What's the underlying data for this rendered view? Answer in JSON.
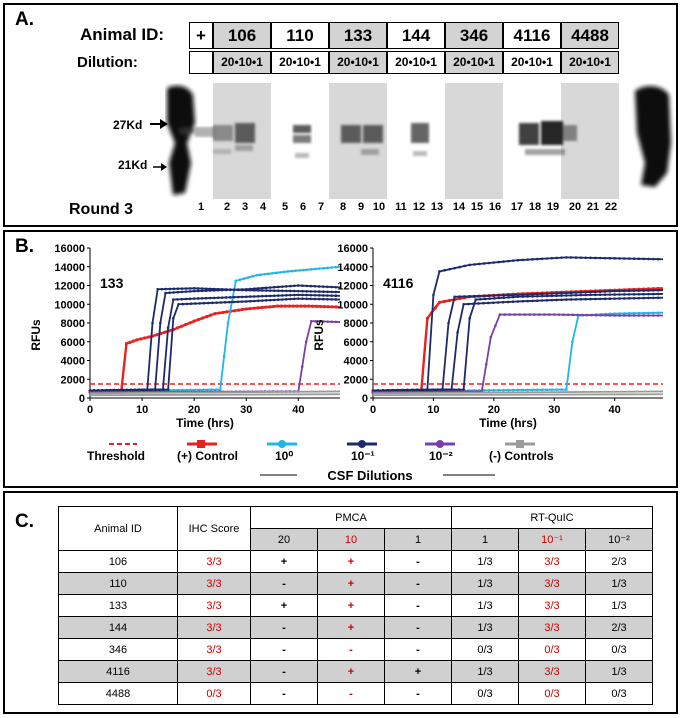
{
  "panel_a": {
    "label": "A.",
    "animal_id_label": "Animal ID:",
    "dilution_label": "Dilution:",
    "round_label": "Round 3",
    "positive_label": "+",
    "marker_27": "27Kd",
    "marker_21": "21Kd",
    "animals": [
      {
        "id": "106",
        "dilution": "20•10•1",
        "shade": true
      },
      {
        "id": "110",
        "dilution": "20•10•1",
        "shade": false
      },
      {
        "id": "133",
        "dilution": "20•10•1",
        "shade": true
      },
      {
        "id": "144",
        "dilution": "20•10•1",
        "shade": false
      },
      {
        "id": "346",
        "dilution": "20•10•1",
        "shade": true
      },
      {
        "id": "4116",
        "dilution": "20•10•1",
        "shade": false
      },
      {
        "id": "4488",
        "dilution": "20•10•1",
        "shade": true
      }
    ],
    "lanes": [
      "1",
      "2",
      "3",
      "4",
      "5",
      "6",
      "7",
      "8",
      "9",
      "10",
      "11",
      "12",
      "13",
      "14",
      "15",
      "16",
      "17",
      "18",
      "19",
      "20",
      "21",
      "22"
    ]
  },
  "panel_b": {
    "label": "B.",
    "chart_data": [
      {
        "type": "line",
        "title": "133",
        "xlabel": "Time (hrs)",
        "ylabel": "RFUs",
        "xlim": [
          0,
          48
        ],
        "ylim": [
          0,
          16000
        ],
        "xticks": [
          "0",
          "10",
          "20",
          "30",
          "40"
        ],
        "yticks": [
          "0",
          "2000",
          "4000",
          "6000",
          "8000",
          "10000",
          "12000",
          "14000",
          "16000"
        ],
        "threshold": 1500,
        "series": [
          {
            "group": "positive",
            "color": "#e8231e",
            "points": [
              [
                0,
                600
              ],
              [
                6,
                700
              ],
              [
                7,
                5800
              ],
              [
                9,
                6200
              ],
              [
                12,
                6600
              ],
              [
                16,
                7300
              ],
              [
                20,
                8200
              ],
              [
                24,
                9000
              ],
              [
                30,
                9500
              ],
              [
                36,
                9800
              ],
              [
                42,
                9800
              ],
              [
                48,
                9700
              ]
            ]
          },
          {
            "group": "d0",
            "color": "#1fb5e8",
            "points": [
              [
                0,
                700
              ],
              [
                25,
                900
              ],
              [
                26.5,
                8000
              ],
              [
                28,
                12500
              ],
              [
                32,
                13100
              ],
              [
                38,
                13500
              ],
              [
                44,
                13800
              ],
              [
                48,
                14000
              ]
            ]
          },
          {
            "group": "d1",
            "color": "#1c2a6b",
            "points": [
              [
                0,
                800
              ],
              [
                11,
                900
              ],
              [
                12,
                8000
              ],
              [
                13,
                11600
              ],
              [
                20,
                11700
              ],
              [
                30,
                11500
              ],
              [
                40,
                11400
              ],
              [
                48,
                11300
              ]
            ]
          },
          {
            "group": "d1",
            "color": "#1c2a6b",
            "points": [
              [
                0,
                800
              ],
              [
                12.5,
                900
              ],
              [
                13.5,
                8000
              ],
              [
                14.5,
                11200
              ],
              [
                20,
                11400
              ],
              [
                30,
                11600
              ],
              [
                40,
                12000
              ],
              [
                48,
                11800
              ]
            ]
          },
          {
            "group": "d1",
            "color": "#1c2a6b",
            "points": [
              [
                0,
                800
              ],
              [
                14,
                900
              ],
              [
                15,
                7500
              ],
              [
                16,
                10500
              ],
              [
                20,
                10600
              ],
              [
                30,
                10800
              ],
              [
                40,
                11000
              ],
              [
                48,
                10900
              ]
            ]
          },
          {
            "group": "d1",
            "color": "#1c2a6b",
            "points": [
              [
                0,
                800
              ],
              [
                15,
                900
              ],
              [
                16,
                8500
              ],
              [
                17,
                10000
              ],
              [
                30,
                10300
              ],
              [
                40,
                10600
              ],
              [
                48,
                10500
              ]
            ]
          },
          {
            "group": "d2",
            "color": "#7b3fa8",
            "points": [
              [
                0,
                600
              ],
              [
                40,
                700
              ],
              [
                41.5,
                6000
              ],
              [
                42.5,
                8200
              ],
              [
                48,
                8100
              ]
            ]
          },
          {
            "group": "neg",
            "color": "#9a9a9a",
            "points": [
              [
                0,
                300
              ],
              [
                48,
                400
              ]
            ]
          },
          {
            "group": "neg",
            "color": "#9a9a9a",
            "points": [
              [
                0,
                500
              ],
              [
                48,
                700
              ]
            ]
          }
        ]
      },
      {
        "type": "line",
        "title": "4116",
        "xlabel": "Time (hrs)",
        "ylabel": "RFUs",
        "xlim": [
          0,
          48
        ],
        "ylim": [
          0,
          16000
        ],
        "xticks": [
          "0",
          "10",
          "20",
          "30",
          "40"
        ],
        "yticks": [
          "0",
          "2000",
          "4000",
          "6000",
          "8000",
          "10000",
          "12000",
          "14000",
          "16000"
        ],
        "threshold": 1500,
        "series": [
          {
            "group": "positive",
            "color": "#e8231e",
            "points": [
              [
                0,
                600
              ],
              [
                8,
                800
              ],
              [
                9,
                8500
              ],
              [
                11,
                10200
              ],
              [
                16,
                10800
              ],
              [
                24,
                11100
              ],
              [
                32,
                11300
              ],
              [
                40,
                11500
              ],
              [
                48,
                11700
              ]
            ]
          },
          {
            "group": "d0",
            "color": "#1fb5e8",
            "points": [
              [
                0,
                700
              ],
              [
                32,
                900
              ],
              [
                33,
                6000
              ],
              [
                34,
                8800
              ],
              [
                40,
                9000
              ],
              [
                48,
                9100
              ]
            ]
          },
          {
            "group": "d1",
            "color": "#1c2a6b",
            "points": [
              [
                0,
                800
              ],
              [
                9,
                900
              ],
              [
                10,
                11000
              ],
              [
                11,
                13500
              ],
              [
                16,
                14200
              ],
              [
                24,
                14700
              ],
              [
                32,
                15000
              ],
              [
                40,
                14900
              ],
              [
                48,
                14800
              ]
            ]
          },
          {
            "group": "d1",
            "color": "#1c2a6b",
            "points": [
              [
                0,
                800
              ],
              [
                11.5,
                900
              ],
              [
                12.5,
                8000
              ],
              [
                13.5,
                10800
              ],
              [
                24,
                11000
              ],
              [
                32,
                11200
              ],
              [
                40,
                11400
              ],
              [
                48,
                11500
              ]
            ]
          },
          {
            "group": "d1",
            "color": "#1c2a6b",
            "points": [
              [
                0,
                800
              ],
              [
                13,
                900
              ],
              [
                14,
                7000
              ],
              [
                15,
                10000
              ],
              [
                24,
                10300
              ],
              [
                32,
                10500
              ],
              [
                40,
                10600
              ],
              [
                48,
                10700
              ]
            ]
          },
          {
            "group": "d1",
            "color": "#1c2a6b",
            "points": [
              [
                0,
                800
              ],
              [
                15,
                900
              ],
              [
                16,
                8500
              ],
              [
                17,
                10500
              ],
              [
                24,
                10800
              ],
              [
                36,
                11000
              ],
              [
                48,
                11100
              ]
            ]
          },
          {
            "group": "d2",
            "color": "#7b3fa8",
            "points": [
              [
                0,
                600
              ],
              [
                18,
                700
              ],
              [
                19.5,
                6500
              ],
              [
                21,
                8900
              ],
              [
                30,
                8900
              ],
              [
                40,
                8800
              ],
              [
                48,
                8800
              ]
            ]
          },
          {
            "group": "neg",
            "color": "#9a9a9a",
            "points": [
              [
                0,
                300
              ],
              [
                48,
                400
              ]
            ]
          },
          {
            "group": "neg",
            "color": "#9a9a9a",
            "points": [
              [
                0,
                500
              ],
              [
                48,
                700
              ]
            ]
          }
        ]
      }
    ],
    "legend": {
      "threshold": "Threshold",
      "positive": "(+) Control",
      "d0": "10⁰",
      "d1": "10⁻¹",
      "d2": "10⁻²",
      "negative": "(-) Controls",
      "csf": "CSF Dilutions"
    },
    "colors": {
      "threshold": "#e8231e",
      "positive": "#e8231e",
      "d0": "#1fb5e8",
      "d1": "#1c2a6b",
      "d2": "#7b3fa8",
      "negative": "#9a9a9a"
    }
  },
  "panel_c": {
    "label": "C.",
    "headers": {
      "animal": "Animal ID",
      "ihc": "IHC Score",
      "pmca": "PMCA",
      "rtquic": "RT-QuIC",
      "pmca_sub": [
        "20",
        "10",
        "1"
      ],
      "rt_sub": [
        "1",
        "10⁻¹",
        "10⁻²"
      ]
    },
    "rows": [
      {
        "id": "106",
        "ihc": "3/3",
        "p20": "+",
        "p10": "+",
        "p1": "-",
        "r1": "1/3",
        "r10": "3/3",
        "r100": "2/3"
      },
      {
        "id": "110",
        "ihc": "3/3",
        "p20": "-",
        "p10": "+",
        "p1": "-",
        "r1": "1/3",
        "r10": "3/3",
        "r100": "1/3"
      },
      {
        "id": "133",
        "ihc": "3/3",
        "p20": "+",
        "p10": "+",
        "p1": "-",
        "r1": "1/3",
        "r10": "3/3",
        "r100": "1/3"
      },
      {
        "id": "144",
        "ihc": "3/3",
        "p20": "-",
        "p10": "+",
        "p1": "-",
        "r1": "1/3",
        "r10": "3/3",
        "r100": "2/3"
      },
      {
        "id": "346",
        "ihc": "3/3",
        "p20": "-",
        "p10": "-",
        "p1": "-",
        "r1": "0/3",
        "r10": "0/3",
        "r100": "0/3"
      },
      {
        "id": "4116",
        "ihc": "3/3",
        "p20": "-",
        "p10": "+",
        "p1": "+",
        "r1": "1/3",
        "r10": "3/3",
        "r100": "1/3"
      },
      {
        "id": "4488",
        "ihc": "0/3",
        "p20": "-",
        "p10": "-",
        "p1": "-",
        "r1": "0/3",
        "r10": "0/3",
        "r100": "0/3"
      }
    ]
  }
}
